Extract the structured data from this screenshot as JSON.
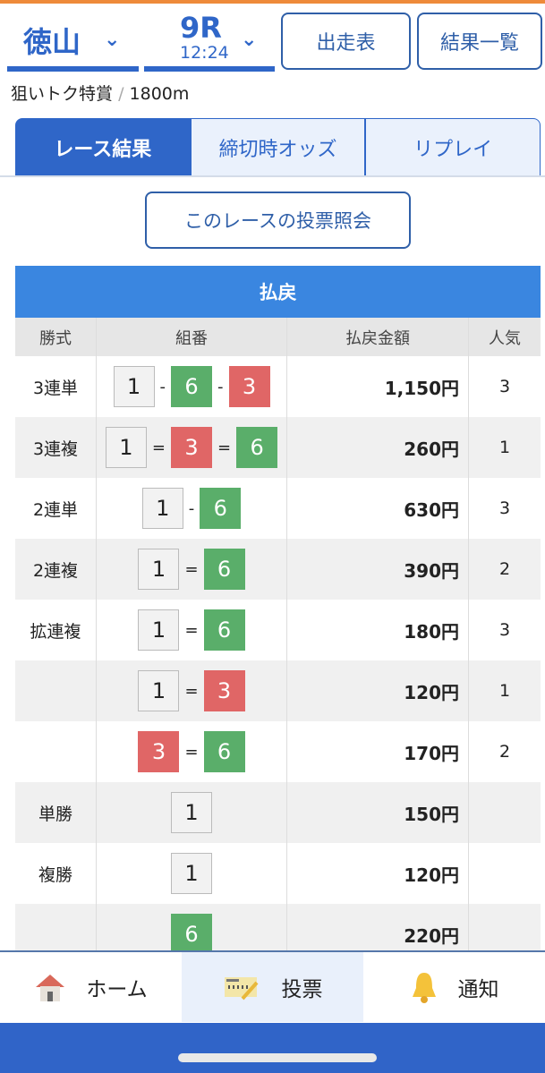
{
  "header": {
    "venue": "徳山",
    "race": "9R",
    "time": "12:24",
    "entries_btn": "出走表",
    "results_btn": "結果一覧"
  },
  "subtitle": {
    "race_name": "狙いトク特賞",
    "separator": "/",
    "distance": "1800m"
  },
  "tabs": [
    "レース結果",
    "締切時オッズ",
    "リプレイ"
  ],
  "inquiry_btn": "このレースの投票照会",
  "payout": {
    "title": "払戻",
    "headers": [
      "勝式",
      "組番",
      "払戻金額",
      "人気"
    ],
    "rows": [
      {
        "type": "3連単",
        "combo": [
          {
            "n": "1",
            "c": "w"
          },
          {
            "s": "-"
          },
          {
            "n": "6",
            "c": "gr"
          },
          {
            "s": "-"
          },
          {
            "n": "3",
            "c": "rd"
          }
        ],
        "amount": "1,150円",
        "pop": "3"
      },
      {
        "type": "3連複",
        "combo": [
          {
            "n": "1",
            "c": "w"
          },
          {
            "s": "="
          },
          {
            "n": "3",
            "c": "rd"
          },
          {
            "s": "="
          },
          {
            "n": "6",
            "c": "gr"
          }
        ],
        "amount": "260円",
        "pop": "1"
      },
      {
        "type": "2連単",
        "combo": [
          {
            "n": "1",
            "c": "w"
          },
          {
            "s": "-"
          },
          {
            "n": "6",
            "c": "gr"
          }
        ],
        "amount": "630円",
        "pop": "3"
      },
      {
        "type": "2連複",
        "combo": [
          {
            "n": "1",
            "c": "w"
          },
          {
            "s": "="
          },
          {
            "n": "6",
            "c": "gr"
          }
        ],
        "amount": "390円",
        "pop": "2"
      },
      {
        "type": "拡連複",
        "combo": [
          {
            "n": "1",
            "c": "w"
          },
          {
            "s": "="
          },
          {
            "n": "6",
            "c": "gr"
          }
        ],
        "amount": "180円",
        "pop": "3"
      },
      {
        "type": "",
        "combo": [
          {
            "n": "1",
            "c": "w"
          },
          {
            "s": "="
          },
          {
            "n": "3",
            "c": "rd"
          }
        ],
        "amount": "120円",
        "pop": "1"
      },
      {
        "type": "",
        "combo": [
          {
            "n": "3",
            "c": "rd"
          },
          {
            "s": "="
          },
          {
            "n": "6",
            "c": "gr"
          }
        ],
        "amount": "170円",
        "pop": "2"
      },
      {
        "type": "単勝",
        "combo": [
          {
            "n": "1",
            "c": "w"
          }
        ],
        "amount": "150円",
        "pop": ""
      },
      {
        "type": "複勝",
        "combo": [
          {
            "n": "1",
            "c": "w"
          }
        ],
        "amount": "120円",
        "pop": ""
      },
      {
        "type": "",
        "combo": [
          {
            "n": "6",
            "c": "gr"
          }
        ],
        "amount": "220円",
        "pop": ""
      }
    ]
  },
  "nav": [
    {
      "label": "ホーム",
      "icon": "house-icon"
    },
    {
      "label": "投票",
      "icon": "ballot-icon"
    },
    {
      "label": "通知",
      "icon": "bell-icon"
    }
  ],
  "colors": {
    "accent": "#2f66c8",
    "title_bar": "#3a86e0",
    "green": "#5aae6a",
    "red": "#e06666",
    "top_bar": "#ee8a3a"
  }
}
